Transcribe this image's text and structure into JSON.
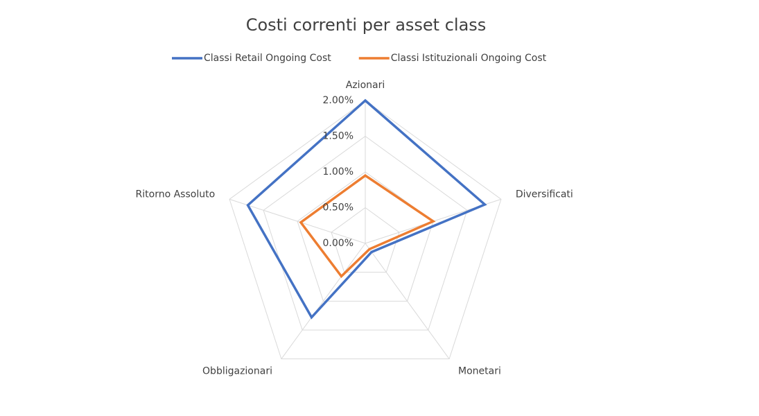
{
  "chart_data": {
    "type": "radar",
    "title": "Costi correnti per asset class",
    "categories": [
      "Azionari",
      "Diversificati",
      "Monetari",
      "Obbligazionari",
      "Ritorno Assoluto"
    ],
    "series": [
      {
        "name": "Classi Retail Ongoing Cost",
        "color": "#4472c4",
        "values": [
          2.0,
          1.76,
          0.15,
          1.28,
          1.73
        ]
      },
      {
        "name": "Classi Istituzionali Ongoing Cost",
        "color": "#ed7d31",
        "values": [
          0.95,
          1.0,
          0.1,
          0.57,
          0.95
        ]
      }
    ],
    "ylim": [
      0,
      2
    ],
    "yticks": [
      {
        "value": 0,
        "label": "0.00%"
      },
      {
        "value": 0.5,
        "label": "0.50%"
      },
      {
        "value": 1,
        "label": "1.00%"
      },
      {
        "value": 1.5,
        "label": "1.50%"
      },
      {
        "value": 2,
        "label": "2.00%"
      }
    ],
    "grid": true,
    "legend": "top"
  }
}
